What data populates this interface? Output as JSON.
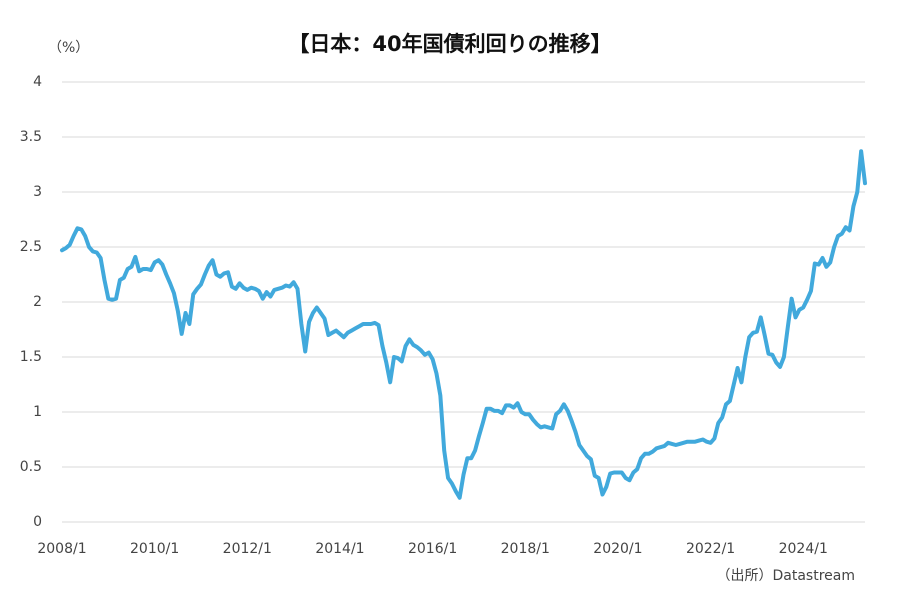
{
  "chart_data": {
    "type": "line",
    "title": "【日本：40年国債利回りの推移】",
    "y_label": "（%）",
    "source": "（出所）Datastream",
    "x": [
      "2008/1",
      "2008/2",
      "2008/3",
      "2008/4",
      "2008/5",
      "2008/6",
      "2008/7",
      "2008/8",
      "2008/9",
      "2008/10",
      "2008/11",
      "2008/12",
      "2009/1",
      "2009/2",
      "2009/3",
      "2009/4",
      "2009/5",
      "2009/6",
      "2009/7",
      "2009/8",
      "2009/9",
      "2009/10",
      "2009/11",
      "2009/12",
      "2010/1",
      "2010/2",
      "2010/3",
      "2010/4",
      "2010/5",
      "2010/6",
      "2010/7",
      "2010/8",
      "2010/9",
      "2010/10",
      "2010/11",
      "2010/12",
      "2011/1",
      "2011/2",
      "2011/3",
      "2011/4",
      "2011/5",
      "2011/6",
      "2011/7",
      "2011/8",
      "2011/9",
      "2011/10",
      "2011/11",
      "2011/12",
      "2012/1",
      "2012/2",
      "2012/3",
      "2012/4",
      "2012/5",
      "2012/6",
      "2012/7",
      "2012/8",
      "2012/9",
      "2012/10",
      "2012/11",
      "2012/12",
      "2013/1",
      "2013/2",
      "2013/3",
      "2013/4",
      "2013/5",
      "2013/6",
      "2013/7",
      "2013/8",
      "2013/9",
      "2013/10",
      "2013/11",
      "2013/12",
      "2014/1",
      "2014/2",
      "2014/3",
      "2014/4",
      "2014/5",
      "2014/6",
      "2014/7",
      "2014/8",
      "2014/9",
      "2014/10",
      "2014/11",
      "2014/12",
      "2015/1",
      "2015/2",
      "2015/3",
      "2015/4",
      "2015/5",
      "2015/6",
      "2015/7",
      "2015/8",
      "2015/9",
      "2015/10",
      "2015/11",
      "2015/12",
      "2016/1",
      "2016/2",
      "2016/3",
      "2016/4",
      "2016/5",
      "2016/6",
      "2016/7",
      "2016/8",
      "2016/9",
      "2016/10",
      "2016/11",
      "2016/12",
      "2017/1",
      "2017/2",
      "2017/3",
      "2017/4",
      "2017/5",
      "2017/6",
      "2017/7",
      "2017/8",
      "2017/9",
      "2017/10",
      "2017/11",
      "2017/12",
      "2018/1",
      "2018/2",
      "2018/3",
      "2018/4",
      "2018/5",
      "2018/6",
      "2018/7",
      "2018/8",
      "2018/9",
      "2018/10",
      "2018/11",
      "2018/12",
      "2019/1",
      "2019/2",
      "2019/3",
      "2019/4",
      "2019/5",
      "2019/6",
      "2019/7",
      "2019/8",
      "2019/9",
      "2019/10",
      "2019/11",
      "2019/12",
      "2020/1",
      "2020/2",
      "2020/3",
      "2020/4",
      "2020/5",
      "2020/6",
      "2020/7",
      "2020/8",
      "2020/9",
      "2020/10",
      "2020/11",
      "2020/12",
      "2021/1",
      "2021/2",
      "2021/3",
      "2021/4",
      "2021/5",
      "2021/6",
      "2021/7",
      "2021/8",
      "2021/9",
      "2021/10",
      "2021/11",
      "2021/12",
      "2022/1",
      "2022/2",
      "2022/3",
      "2022/4",
      "2022/5",
      "2022/6",
      "2022/7",
      "2022/8",
      "2022/9",
      "2022/10",
      "2022/11",
      "2022/12",
      "2023/1",
      "2023/2",
      "2023/3",
      "2023/4",
      "2023/5",
      "2023/6",
      "2023/7",
      "2023/8",
      "2023/9",
      "2023/10",
      "2023/11",
      "2023/12",
      "2024/1",
      "2024/2",
      "2024/3",
      "2024/4",
      "2024/5",
      "2024/6",
      "2024/7",
      "2024/8",
      "2024/9",
      "2024/10",
      "2024/11",
      "2024/12",
      "2025/1",
      "2025/2",
      "2025/3",
      "2025/4",
      "2025/5"
    ],
    "series": [
      {
        "name": "40年国債利回り",
        "color": "#41a9dc",
        "values": [
          2.47,
          2.49,
          2.52,
          2.6,
          2.67,
          2.66,
          2.6,
          2.5,
          2.46,
          2.45,
          2.4,
          2.2,
          2.03,
          2.02,
          2.03,
          2.2,
          2.22,
          2.3,
          2.32,
          2.41,
          2.28,
          2.3,
          2.3,
          2.29,
          2.36,
          2.38,
          2.34,
          2.25,
          2.17,
          2.08,
          1.92,
          1.71,
          1.9,
          1.8,
          2.07,
          2.12,
          2.16,
          2.25,
          2.33,
          2.38,
          2.25,
          2.23,
          2.26,
          2.27,
          2.14,
          2.12,
          2.17,
          2.13,
          2.11,
          2.13,
          2.12,
          2.1,
          2.03,
          2.09,
          2.05,
          2.11,
          2.12,
          2.13,
          2.15,
          2.14,
          2.18,
          2.12,
          1.8,
          1.55,
          1.82,
          1.9,
          1.95,
          1.9,
          1.85,
          1.7,
          1.72,
          1.74,
          1.71,
          1.68,
          1.72,
          1.74,
          1.76,
          1.78,
          1.8,
          1.8,
          1.8,
          1.81,
          1.79,
          1.6,
          1.45,
          1.27,
          1.5,
          1.49,
          1.46,
          1.6,
          1.66,
          1.61,
          1.59,
          1.56,
          1.52,
          1.54,
          1.48,
          1.35,
          1.15,
          0.65,
          0.4,
          0.35,
          0.28,
          0.22,
          0.43,
          0.58,
          0.58,
          0.65,
          0.78,
          0.9,
          1.03,
          1.03,
          1.01,
          1.01,
          0.99,
          1.06,
          1.06,
          1.04,
          1.08,
          1.0,
          0.98,
          0.98,
          0.93,
          0.89,
          0.86,
          0.87,
          0.86,
          0.85,
          0.98,
          1.01,
          1.07,
          1.01,
          0.92,
          0.82,
          0.7,
          0.65,
          0.6,
          0.57,
          0.42,
          0.4,
          0.25,
          0.32,
          0.44,
          0.45,
          0.45,
          0.45,
          0.4,
          0.38,
          0.45,
          0.48,
          0.58,
          0.62,
          0.62,
          0.64,
          0.67,
          0.68,
          0.69,
          0.72,
          0.71,
          0.7,
          0.71,
          0.72,
          0.73,
          0.73,
          0.73,
          0.74,
          0.75,
          0.73,
          0.72,
          0.76,
          0.9,
          0.95,
          1.07,
          1.1,
          1.25,
          1.4,
          1.27,
          1.5,
          1.68,
          1.72,
          1.73,
          1.86,
          1.7,
          1.53,
          1.52,
          1.45,
          1.41,
          1.5,
          1.77,
          2.03,
          1.86,
          1.93,
          1.95,
          2.02,
          2.1,
          2.35,
          2.34,
          2.4,
          2.32,
          2.36,
          2.5,
          2.6,
          2.62,
          2.68,
          2.65,
          2.87,
          3.0,
          3.37,
          3.08
        ]
      }
    ],
    "xticks": [
      "2008/1",
      "2010/1",
      "2012/1",
      "2014/1",
      "2016/1",
      "2018/1",
      "2020/1",
      "2022/1",
      "2024/1"
    ],
    "ylim": [
      0,
      4
    ],
    "yticks": [
      0,
      0.5,
      1,
      1.5,
      2,
      2.5,
      3,
      3.5,
      4
    ],
    "grid": true
  }
}
